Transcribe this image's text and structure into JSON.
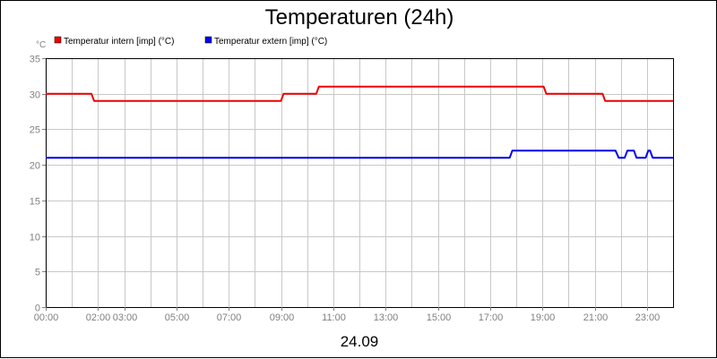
{
  "chart_data": {
    "type": "line",
    "title": "Temperaturen (24h)",
    "ylabel": "°C",
    "xlabel": "24.09",
    "ylim": [
      0,
      35
    ],
    "xlim": [
      0,
      24
    ],
    "grid": true,
    "legend_position": "top-left",
    "yticks": [
      0,
      5,
      10,
      15,
      20,
      25,
      30,
      35
    ],
    "ytick_labels": [
      "0",
      "5",
      "10",
      "15",
      "20",
      "25",
      "30",
      "35"
    ],
    "xticks": [
      0,
      2,
      3,
      5,
      7,
      9,
      11,
      13,
      15,
      17,
      19,
      21,
      23
    ],
    "xtick_labels": [
      "00:00",
      "02:00",
      "03:00",
      "05:00",
      "07:00",
      "09:00",
      "11:00",
      "13:00",
      "15:00",
      "17:00",
      "19:00",
      "21:00",
      "23:00"
    ],
    "x_gridlines": [
      0,
      1,
      2,
      3,
      4,
      5,
      6,
      7,
      8,
      9,
      10,
      11,
      12,
      13,
      14,
      15,
      16,
      17,
      18,
      19,
      20,
      21,
      22,
      23,
      24
    ],
    "series": [
      {
        "name": "Temperatur intern [imp] (°C)",
        "color": "#ee0000",
        "x": [
          0,
          1.75,
          1.85,
          9.0,
          9.1,
          10.35,
          10.45,
          19.05,
          19.15,
          21.3,
          21.4,
          24
        ],
        "y": [
          30,
          30,
          29,
          29,
          30,
          30,
          31,
          31,
          30,
          30,
          29,
          29
        ]
      },
      {
        "name": "Temperatur extern [imp] (°C)",
        "color": "#0000ee",
        "x": [
          0,
          17.75,
          17.85,
          21.8,
          21.92,
          22.15,
          22.25,
          22.5,
          22.6,
          22.95,
          23.05,
          23.12,
          23.22,
          24
        ],
        "y": [
          21,
          21,
          22,
          22,
          21,
          21,
          22,
          22,
          21,
          21,
          22,
          22,
          21,
          21
        ]
      }
    ]
  }
}
